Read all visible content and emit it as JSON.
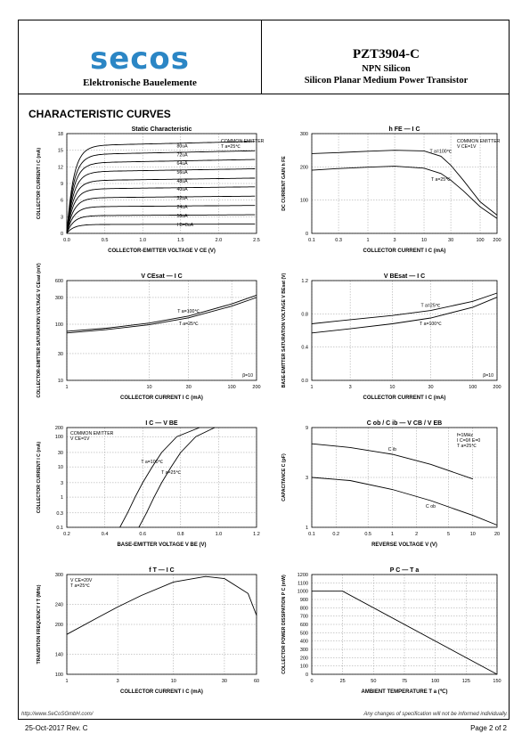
{
  "header": {
    "brand": "secos",
    "brand_sub": "Elektronische Bauelemente",
    "part_number": "PZT3904-C",
    "polarity": "NPN Silicon",
    "description": "Silicon Planar Medium Power Transistor",
    "brand_color": "#2b86c5",
    "dot_color": "#f2c300"
  },
  "section_title": "CHARACTERISTIC CURVES",
  "footer": {
    "url": "http://www.SeCoSGmbH.com/",
    "notice": "Any changes of specification will not be informed individually.",
    "revision": "25-Oct-2017 Rev. C",
    "page": "Page 2 of 2"
  },
  "chart_data": [
    {
      "type": "line",
      "title": "Static Characteristic",
      "xlabel": "COLLECTOR-EMITTER VOLTAGE V CE (V)",
      "ylabel": "COLLECTOR CURRENT I C (mA)",
      "xlim": [
        0,
        2.5
      ],
      "ylim": [
        0,
        18
      ],
      "x_ticks": [
        "0.0",
        "0.5",
        "1.0",
        "1.5",
        "2.0",
        "2.5"
      ],
      "y_ticks": [
        "0",
        "3",
        "6",
        "9",
        "12",
        "15",
        "18"
      ],
      "annotations": [
        "COMMON EMITTER",
        "T a=25℃"
      ],
      "series": [
        {
          "name": "80uA",
          "sat": 15.8
        },
        {
          "name": "72uA",
          "sat": 14.2
        },
        {
          "name": "64uA",
          "sat": 12.7
        },
        {
          "name": "56uA",
          "sat": 11.1
        },
        {
          "name": "48uA",
          "sat": 9.5
        },
        {
          "name": "40uA",
          "sat": 8.0
        },
        {
          "name": "32uA",
          "sat": 6.4
        },
        {
          "name": "24uA",
          "sat": 4.8
        },
        {
          "name": "16uA",
          "sat": 3.2
        },
        {
          "name": "I B=8uA",
          "sat": 1.6
        }
      ]
    },
    {
      "type": "line",
      "title": "h FE — I C",
      "xlabel": "COLLECTOR CURRENT I C (mA)",
      "ylabel": "DC CURRENT GAIN h FE",
      "xscale": "log",
      "xlim": [
        0.1,
        200
      ],
      "ylim": [
        0,
        300
      ],
      "x_ticks": [
        "0.1",
        "0.3",
        "1",
        "3",
        "10",
        "30",
        "100",
        "200"
      ],
      "y_ticks": [
        "0",
        "100",
        "200",
        "300"
      ],
      "annotations": [
        "COMMON EMITTER",
        "V CE=1V"
      ],
      "series": [
        {
          "name": "T a=100℃",
          "x": [
            0.1,
            0.3,
            1,
            3,
            10,
            20,
            30,
            50,
            100,
            200
          ],
          "y": [
            240,
            243,
            247,
            250,
            248,
            232,
            205,
            160,
            95,
            55
          ]
        },
        {
          "name": "T a=25℃",
          "x": [
            0.1,
            0.3,
            1,
            3,
            10,
            20,
            30,
            50,
            100,
            200
          ],
          "y": [
            190,
            195,
            199,
            202,
            196,
            180,
            160,
            128,
            80,
            45
          ]
        }
      ]
    },
    {
      "type": "line",
      "title": "V CEsat — I C",
      "xlabel": "COLLECTOR CURRENT I C (mA)",
      "ylabel": "COLLECTOR-EMITTER SATURATION VOLTAGE V CEsat (mV)",
      "xscale": "log",
      "yscale": "log",
      "xlim": [
        1,
        200
      ],
      "ylim": [
        10,
        600
      ],
      "x_ticks": [
        "1",
        "10",
        "30",
        "100",
        "200"
      ],
      "y_ticks": [
        "10",
        "30",
        "100",
        "300",
        "600"
      ],
      "annotations": [
        "β=10"
      ],
      "series": [
        {
          "name": "T a=100℃",
          "x": [
            1,
            3,
            10,
            30,
            100,
            200
          ],
          "y": [
            75,
            85,
            105,
            140,
            230,
            330
          ]
        },
        {
          "name": "T a=25℃",
          "x": [
            1,
            3,
            10,
            30,
            100,
            200
          ],
          "y": [
            70,
            80,
            98,
            130,
            210,
            300
          ]
        }
      ]
    },
    {
      "type": "line",
      "title": "V BEsat — I C",
      "xlabel": "COLLECTOR CURRENT I C (mA)",
      "ylabel": "BASE-EMITTER SATURATION VOLTAGE V BEsat (V)",
      "xscale": "log",
      "xlim": [
        1,
        200
      ],
      "ylim": [
        0,
        1.2
      ],
      "x_ticks": [
        "1",
        "3",
        "10",
        "30",
        "100",
        "200"
      ],
      "y_ticks": [
        "0.0",
        "0.4",
        "0.8",
        "1.2"
      ],
      "annotations": [
        "β=10"
      ],
      "series": [
        {
          "name": "T a=25℃",
          "x": [
            1,
            3,
            10,
            30,
            100,
            200
          ],
          "y": [
            0.68,
            0.73,
            0.78,
            0.84,
            0.95,
            1.05
          ]
        },
        {
          "name": "T a=100℃",
          "x": [
            1,
            3,
            10,
            30,
            100,
            200
          ],
          "y": [
            0.57,
            0.62,
            0.68,
            0.75,
            0.88,
            1.0
          ]
        }
      ]
    },
    {
      "type": "line",
      "title": "I C — V BE",
      "xlabel": "BASE-EMITTER VOLTAGE V BE (V)",
      "ylabel": "COLLECTOR CURRENT I C (mA)",
      "yscale": "log",
      "xlim": [
        0.2,
        1.2
      ],
      "ylim": [
        0.1,
        200
      ],
      "x_ticks": [
        "0.2",
        "0.4",
        "0.6",
        "0.8",
        "1.0",
        "1.2"
      ],
      "y_ticks": [
        "0.1",
        "0.3",
        "1",
        "3",
        "10",
        "30",
        "100",
        "200"
      ],
      "annotations": [
        "COMMON EMITTER",
        "V CE=1V"
      ],
      "series": [
        {
          "name": "T a=100℃",
          "x": [
            0.48,
            0.52,
            0.56,
            0.6,
            0.65,
            0.7,
            0.78,
            0.9
          ],
          "y": [
            0.1,
            0.3,
            1,
            3,
            10,
            30,
            100,
            200
          ]
        },
        {
          "name": "T a=25℃",
          "x": [
            0.58,
            0.62,
            0.66,
            0.7,
            0.75,
            0.8,
            0.88,
            0.98
          ],
          "y": [
            0.1,
            0.3,
            1,
            3,
            10,
            30,
            100,
            200
          ]
        }
      ]
    },
    {
      "type": "line",
      "title": "C ob / C ib — V CB / V EB",
      "xlabel": "REVERSE VOLTAGE V (V)",
      "ylabel": "CAPACITANCE C (pF)",
      "xscale": "log",
      "yscale": "log",
      "xlim": [
        0.1,
        20
      ],
      "ylim": [
        1,
        9
      ],
      "x_ticks": [
        "0.1",
        "0.2",
        "0.5",
        "1",
        "2",
        "5",
        "10",
        "20"
      ],
      "y_ticks": [
        "1",
        "3",
        "9"
      ],
      "annotations": [
        "f=1MHz",
        "I C=0/I E=0",
        "T a=25℃"
      ],
      "series": [
        {
          "name": "C ib",
          "x": [
            0.1,
            0.3,
            1,
            3,
            10
          ],
          "y": [
            6.3,
            5.8,
            5.0,
            4.0,
            2.9
          ]
        },
        {
          "name": "C ob",
          "x": [
            0.1,
            0.3,
            1,
            3,
            10,
            20
          ],
          "y": [
            3.0,
            2.8,
            2.3,
            1.8,
            1.3,
            1.05
          ]
        }
      ]
    },
    {
      "type": "line",
      "title": "f T — I C",
      "xlabel": "COLLECTOR CURRENT I C (mA)",
      "ylabel": "TRANSITION FREQUENCY f T (MHz)",
      "xscale": "log",
      "xlim": [
        1,
        60
      ],
      "ylim": [
        100,
        300
      ],
      "x_ticks": [
        "1",
        "3",
        "10",
        "30",
        "60"
      ],
      "y_ticks": [
        "100",
        "140",
        "200",
        "240",
        "300"
      ],
      "annotations": [
        "V CE=20V",
        "T a=25℃"
      ],
      "series": [
        {
          "name": "f T",
          "x": [
            1,
            2,
            3,
            5,
            10,
            20,
            30,
            50,
            60
          ],
          "y": [
            180,
            215,
            235,
            258,
            285,
            296,
            292,
            262,
            218
          ]
        }
      ]
    },
    {
      "type": "line",
      "title": "P C — T a",
      "xlabel": "AMBIENT TEMPERATURE T a (℃)",
      "ylabel": "COLLECTOR POWER DISSIPATION P C (mW)",
      "xlim": [
        0,
        150
      ],
      "ylim": [
        0,
        1200
      ],
      "x_ticks": [
        "0",
        "25",
        "50",
        "75",
        "100",
        "125",
        "150"
      ],
      "y_ticks": [
        "0",
        "100",
        "200",
        "300",
        "400",
        "500",
        "600",
        "700",
        "800",
        "900",
        "1000",
        "1100",
        "1200"
      ],
      "series": [
        {
          "name": "P C",
          "x": [
            0,
            25,
            150
          ],
          "y": [
            1000,
            1000,
            0
          ]
        }
      ]
    }
  ]
}
